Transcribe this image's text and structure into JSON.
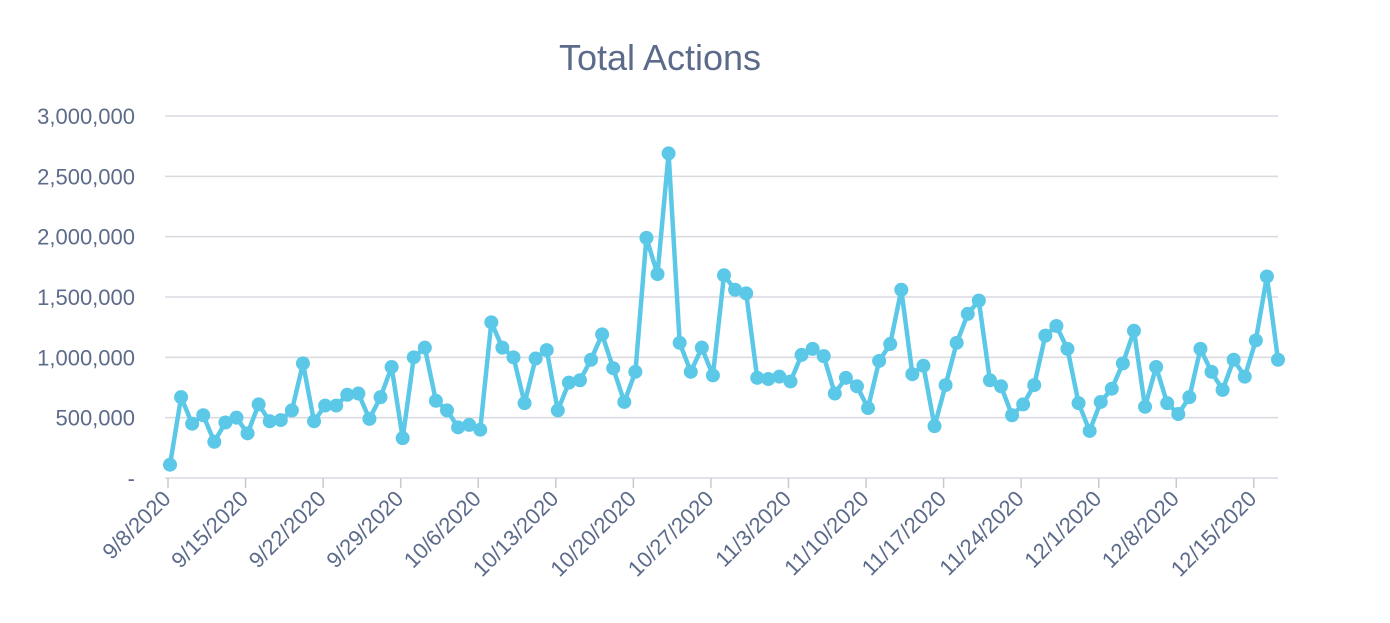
{
  "chart_data": {
    "type": "line",
    "title": "Total Actions",
    "xlabel": "",
    "ylabel": "",
    "ylim": [
      0,
      3000000
    ],
    "yticks": [
      {
        "value": 0,
        "label": "-"
      },
      {
        "value": 500000,
        "label": "500,000"
      },
      {
        "value": 1000000,
        "label": "1,000,000"
      },
      {
        "value": 1500000,
        "label": "1,500,000"
      },
      {
        "value": 2000000,
        "label": "2,000,000"
      },
      {
        "value": 2500000,
        "label": "2,500,000"
      },
      {
        "value": 3000000,
        "label": "3,000,000"
      }
    ],
    "xticks": [
      "9/8/2020",
      "9/15/2020",
      "9/22/2020",
      "9/29/2020",
      "10/6/2020",
      "10/13/2020",
      "10/20/2020",
      "10/27/2020",
      "11/3/2020",
      "11/10/2020",
      "11/17/2020",
      "11/24/2020",
      "12/1/2020",
      "12/8/2020",
      "12/15/2020"
    ],
    "start_date": "2020-09-08",
    "grid": true,
    "legend": "none",
    "color": "#5bc8e8",
    "series": [
      {
        "values": [
          110000,
          670000,
          450000,
          520000,
          300000,
          460000,
          500000,
          370000,
          610000,
          470000,
          480000,
          560000,
          950000,
          470000,
          600000,
          600000,
          690000,
          700000,
          490000,
          670000,
          920000,
          330000,
          1000000,
          1080000,
          640000,
          560000,
          420000,
          440000,
          400000,
          1290000,
          1080000,
          1000000,
          620000,
          990000,
          1060000,
          560000,
          790000,
          810000,
          980000,
          1190000,
          910000,
          630000,
          880000,
          1990000,
          1690000,
          2690000,
          1120000,
          880000,
          1080000,
          850000,
          1680000,
          1560000,
          1530000,
          830000,
          820000,
          840000,
          800000,
          1020000,
          1070000,
          1010000,
          700000,
          830000,
          760000,
          580000,
          970000,
          1110000,
          1560000,
          860000,
          930000,
          430000,
          770000,
          1120000,
          1360000,
          1470000,
          810000,
          760000,
          520000,
          610000,
          770000,
          1180000,
          1260000,
          1070000,
          620000,
          390000,
          630000,
          740000,
          950000,
          1220000,
          590000,
          920000,
          620000,
          530000,
          670000,
          1070000,
          880000,
          730000,
          980000,
          840000,
          1140000,
          1670000,
          980000
        ]
      }
    ]
  }
}
